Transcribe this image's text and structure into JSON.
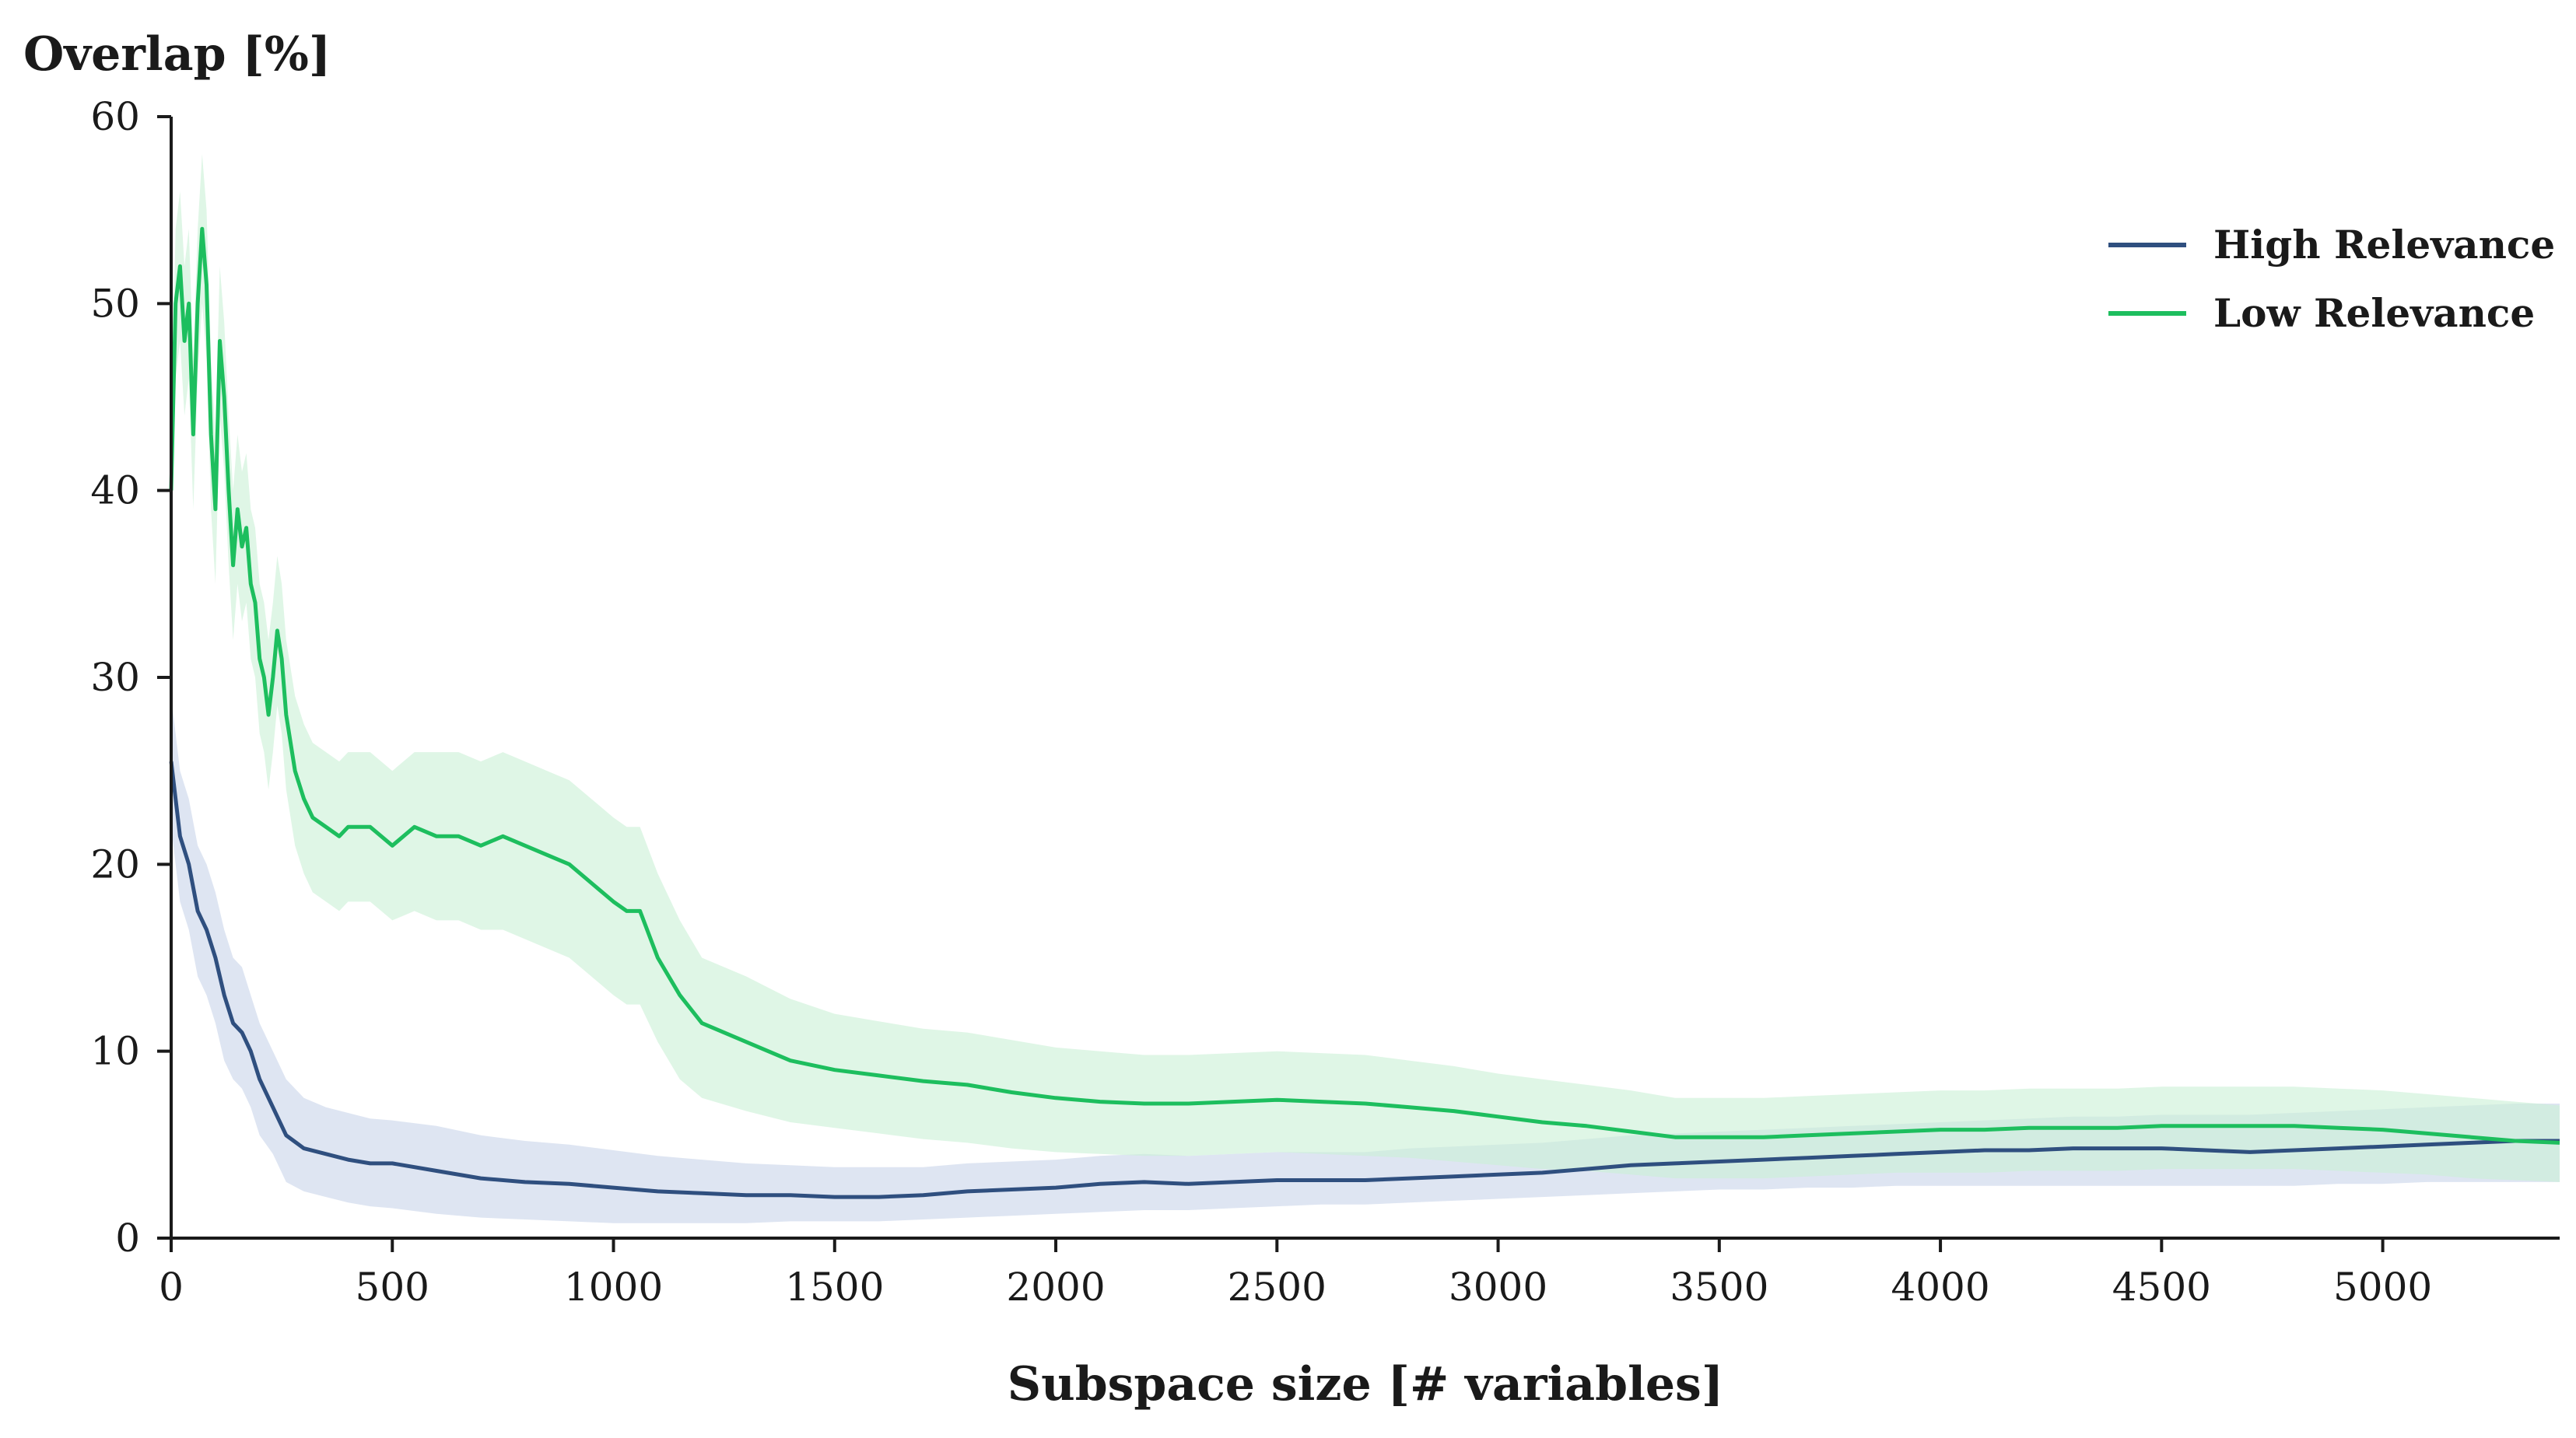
{
  "chart_data": {
    "type": "line",
    "title": "",
    "xlabel": "Subspace size [# variables]",
    "ylabel": "Overlap [%]",
    "xlim": [
      0,
      5400
    ],
    "ylim": [
      0,
      60
    ],
    "x_ticks": [
      0,
      500,
      1000,
      1500,
      2000,
      2500,
      3000,
      3500,
      4000,
      4500,
      5000
    ],
    "y_ticks": [
      0,
      10,
      20,
      30,
      40,
      50,
      60
    ],
    "grid": false,
    "legend": {
      "position": "top-right"
    },
    "series": [
      {
        "name": "High Relevance",
        "color": "#2f4f7f",
        "band_color": "#c8d3ea",
        "x": [
          0,
          10,
          20,
          40,
          60,
          80,
          100,
          120,
          140,
          160,
          180,
          200,
          230,
          260,
          300,
          350,
          400,
          450,
          500,
          600,
          700,
          800,
          900,
          1000,
          1100,
          1200,
          1300,
          1400,
          1500,
          1600,
          1700,
          1800,
          1900,
          2000,
          2100,
          2200,
          2300,
          2400,
          2500,
          2600,
          2700,
          2800,
          2900,
          3000,
          3100,
          3200,
          3300,
          3400,
          3500,
          3600,
          3700,
          3800,
          3900,
          4000,
          4100,
          4200,
          4300,
          4400,
          4500,
          4600,
          4700,
          4800,
          4900,
          5000,
          5100,
          5200,
          5300,
          5400
        ],
        "values": [
          25.5,
          23.5,
          21.5,
          20.0,
          17.5,
          16.5,
          15.0,
          13.0,
          11.5,
          11.0,
          10.0,
          8.5,
          7.0,
          5.5,
          4.8,
          4.5,
          4.2,
          4.0,
          4.0,
          3.6,
          3.2,
          3.0,
          2.9,
          2.7,
          2.5,
          2.4,
          2.3,
          2.3,
          2.2,
          2.2,
          2.3,
          2.5,
          2.6,
          2.7,
          2.9,
          3.0,
          2.9,
          3.0,
          3.1,
          3.1,
          3.1,
          3.2,
          3.3,
          3.4,
          3.5,
          3.7,
          3.9,
          4.0,
          4.1,
          4.2,
          4.3,
          4.4,
          4.5,
          4.6,
          4.7,
          4.7,
          4.8,
          4.8,
          4.8,
          4.7,
          4.6,
          4.7,
          4.8,
          4.9,
          5.0,
          5.1,
          5.2,
          5.2
        ],
        "lower": [
          22.0,
          20.0,
          18.0,
          16.5,
          14.0,
          13.0,
          11.5,
          9.5,
          8.5,
          8.0,
          7.0,
          5.5,
          4.5,
          3.0,
          2.5,
          2.2,
          1.9,
          1.7,
          1.6,
          1.3,
          1.1,
          1.0,
          0.9,
          0.8,
          0.8,
          0.8,
          0.8,
          0.9,
          0.9,
          0.9,
          1.0,
          1.1,
          1.2,
          1.3,
          1.4,
          1.5,
          1.5,
          1.6,
          1.7,
          1.8,
          1.8,
          1.9,
          2.0,
          2.1,
          2.2,
          2.3,
          2.4,
          2.5,
          2.6,
          2.6,
          2.7,
          2.7,
          2.8,
          2.8,
          2.8,
          2.8,
          2.8,
          2.8,
          2.8,
          2.8,
          2.8,
          2.8,
          2.9,
          2.9,
          3.0,
          3.0,
          3.0,
          3.0
        ],
        "upper": [
          29.0,
          27.0,
          25.0,
          23.5,
          21.0,
          20.0,
          18.5,
          16.5,
          15.0,
          14.5,
          13.0,
          11.5,
          10.0,
          8.5,
          7.5,
          7.0,
          6.7,
          6.4,
          6.3,
          6.0,
          5.5,
          5.2,
          5.0,
          4.7,
          4.4,
          4.2,
          4.0,
          3.9,
          3.8,
          3.8,
          3.8,
          4.0,
          4.1,
          4.2,
          4.4,
          4.5,
          4.4,
          4.5,
          4.6,
          4.6,
          4.6,
          4.8,
          4.9,
          5.0,
          5.1,
          5.3,
          5.5,
          5.6,
          5.7,
          5.8,
          5.9,
          6.0,
          6.1,
          6.2,
          6.3,
          6.4,
          6.5,
          6.5,
          6.6,
          6.6,
          6.6,
          6.7,
          6.8,
          6.9,
          7.0,
          7.1,
          7.2,
          7.2
        ]
      },
      {
        "name": "Low Relevance",
        "color": "#1dbe5e",
        "band_color": "#c9f0d6",
        "x": [
          0,
          10,
          20,
          30,
          40,
          50,
          60,
          70,
          80,
          90,
          100,
          110,
          120,
          130,
          140,
          150,
          160,
          170,
          180,
          190,
          200,
          210,
          220,
          230,
          240,
          250,
          260,
          280,
          300,
          320,
          350,
          380,
          400,
          450,
          500,
          550,
          600,
          650,
          700,
          750,
          800,
          850,
          900,
          950,
          1000,
          1030,
          1060,
          1100,
          1150,
          1200,
          1300,
          1400,
          1500,
          1600,
          1700,
          1800,
          1900,
          2000,
          2100,
          2200,
          2300,
          2400,
          2500,
          2600,
          2700,
          2800,
          2900,
          3000,
          3100,
          3200,
          3300,
          3400,
          3500,
          3600,
          3700,
          3800,
          3900,
          4000,
          4100,
          4200,
          4300,
          4400,
          4500,
          4600,
          4700,
          4800,
          4900,
          5000,
          5100,
          5200,
          5300,
          5400
        ],
        "values": [
          40.0,
          50.0,
          52.0,
          48.0,
          50.0,
          43.0,
          50.0,
          54.0,
          51.0,
          43.0,
          39.0,
          48.0,
          45.0,
          40.0,
          36.0,
          39.0,
          37.0,
          38.0,
          35.0,
          34.0,
          31.0,
          30.0,
          28.0,
          30.0,
          32.5,
          31.0,
          28.0,
          25.0,
          23.5,
          22.5,
          22.0,
          21.5,
          22.0,
          22.0,
          21.0,
          22.0,
          21.5,
          21.5,
          21.0,
          21.5,
          21.0,
          20.5,
          20.0,
          19.0,
          18.0,
          17.5,
          17.5,
          15.0,
          13.0,
          11.5,
          10.5,
          9.5,
          9.0,
          8.7,
          8.4,
          8.2,
          7.8,
          7.5,
          7.3,
          7.2,
          7.2,
          7.3,
          7.4,
          7.3,
          7.2,
          7.0,
          6.8,
          6.5,
          6.2,
          6.0,
          5.7,
          5.4,
          5.4,
          5.4,
          5.5,
          5.6,
          5.7,
          5.8,
          5.8,
          5.9,
          5.9,
          5.9,
          6.0,
          6.0,
          6.0,
          6.0,
          5.9,
          5.8,
          5.6,
          5.4,
          5.2,
          5.1
        ],
        "lower": [
          37.0,
          46.0,
          48.0,
          44.0,
          46.0,
          39.0,
          46.0,
          50.0,
          47.0,
          39.0,
          35.0,
          44.0,
          41.0,
          36.0,
          32.0,
          35.0,
          33.0,
          34.0,
          31.0,
          30.0,
          27.0,
          26.0,
          24.0,
          26.0,
          28.5,
          27.0,
          24.0,
          21.0,
          19.5,
          18.5,
          18.0,
          17.5,
          18.0,
          18.0,
          17.0,
          17.5,
          17.0,
          17.0,
          16.5,
          16.5,
          16.0,
          15.5,
          15.0,
          14.0,
          13.0,
          12.5,
          12.5,
          10.5,
          8.5,
          7.5,
          6.8,
          6.2,
          5.9,
          5.6,
          5.3,
          5.1,
          4.8,
          4.6,
          4.5,
          4.4,
          4.4,
          4.5,
          4.6,
          4.5,
          4.4,
          4.3,
          4.1,
          3.9,
          3.7,
          3.6,
          3.4,
          3.2,
          3.2,
          3.2,
          3.3,
          3.4,
          3.5,
          3.5,
          3.5,
          3.6,
          3.6,
          3.6,
          3.7,
          3.7,
          3.7,
          3.7,
          3.6,
          3.5,
          3.4,
          3.2,
          3.1,
          3.0
        ],
        "upper": [
          43.0,
          54.0,
          56.0,
          52.0,
          54.0,
          47.0,
          54.0,
          58.0,
          55.0,
          47.0,
          43.0,
          52.0,
          49.0,
          44.0,
          40.0,
          43.0,
          41.0,
          42.0,
          39.0,
          38.0,
          35.0,
          34.0,
          32.0,
          34.0,
          36.5,
          35.0,
          32.0,
          29.0,
          27.5,
          26.5,
          26.0,
          25.5,
          26.0,
          26.0,
          25.0,
          26.0,
          26.0,
          26.0,
          25.5,
          26.0,
          25.5,
          25.0,
          24.5,
          23.5,
          22.5,
          22.0,
          22.0,
          19.5,
          17.0,
          15.0,
          14.0,
          12.8,
          12.0,
          11.6,
          11.2,
          11.0,
          10.6,
          10.2,
          10.0,
          9.8,
          9.8,
          9.9,
          10.0,
          9.9,
          9.8,
          9.5,
          9.2,
          8.8,
          8.5,
          8.2,
          7.9,
          7.5,
          7.5,
          7.5,
          7.6,
          7.7,
          7.8,
          7.9,
          7.9,
          8.0,
          8.0,
          8.0,
          8.1,
          8.1,
          8.1,
          8.1,
          8.0,
          7.9,
          7.7,
          7.5,
          7.3,
          7.1
        ]
      }
    ]
  }
}
